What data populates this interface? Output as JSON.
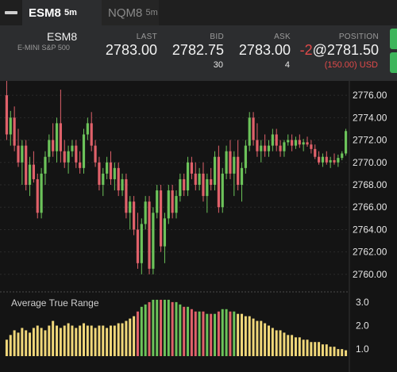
{
  "tabs": [
    {
      "symbol": "ESM8",
      "interval": "5m",
      "active": true
    },
    {
      "symbol": "NQM8",
      "interval": "5m",
      "active": false
    }
  ],
  "quote": {
    "symbol": "ESM8",
    "description": "E-MINI S&P 500",
    "last_label": "LAST",
    "last": "2783.00",
    "bid_label": "BID",
    "bid": "2782.75",
    "bid_size": "30",
    "ask_label": "ASK",
    "ask": "2783.00",
    "ask_size": "4",
    "position_label": "POSITION",
    "position_qty": "-2",
    "position_price": "@2781.50",
    "pnl": "(150.00) USD"
  },
  "colors": {
    "up": "#6cc35a",
    "down": "#e0616a",
    "atr": "#f0d77a",
    "accent_green": "#3eb55b",
    "negative": "#e04a4a"
  },
  "chart_data": [
    {
      "type": "candlestick",
      "ylim": [
        2759,
        2777
      ],
      "price_ticks": [
        "2776.00",
        "2774.00",
        "2772.00",
        "2770.00",
        "2768.00",
        "2766.00",
        "2764.00",
        "2762.00",
        "2760.00"
      ],
      "ohlc": [
        [
          2776,
          2778,
          2772,
          2772.5
        ],
        [
          2772.5,
          2774.6,
          2771.5,
          2774
        ],
        [
          2774,
          2775,
          2771,
          2771.5
        ],
        [
          2771.5,
          2773,
          2769.6,
          2770
        ],
        [
          2770,
          2772,
          2768,
          2771.5
        ],
        [
          2771.5,
          2772,
          2767.5,
          2768
        ],
        [
          2768,
          2770.5,
          2767,
          2769.8
        ],
        [
          2769.8,
          2771,
          2768.2,
          2768.5
        ],
        [
          2768.5,
          2769,
          2765,
          2765.5
        ],
        [
          2765.5,
          2769.5,
          2765,
          2769
        ],
        [
          2769,
          2771,
          2768,
          2770.5
        ],
        [
          2770.5,
          2772.5,
          2770,
          2772
        ],
        [
          2772,
          2773.5,
          2770.5,
          2771
        ],
        [
          2771,
          2774,
          2770,
          2773.5
        ],
        [
          2773.5,
          2776.5,
          2770,
          2771
        ],
        [
          2771,
          2772,
          2769.5,
          2770
        ],
        [
          2770,
          2771.5,
          2769,
          2771
        ],
        [
          2771,
          2772,
          2770.5,
          2771.5
        ],
        [
          2771.5,
          2772,
          2769.5,
          2770
        ],
        [
          2770,
          2771,
          2769,
          2769.5
        ],
        [
          2769.5,
          2773,
          2769,
          2772.5
        ],
        [
          2772.5,
          2774,
          2772,
          2773.5
        ],
        [
          2773.5,
          2774.5,
          2771,
          2771.5
        ],
        [
          2771.5,
          2772,
          2769.6,
          2770
        ],
        [
          2770,
          2770.5,
          2767.5,
          2768
        ],
        [
          2768,
          2769.5,
          2767,
          2769
        ],
        [
          2769,
          2770.5,
          2768.5,
          2770
        ],
        [
          2770,
          2771,
          2768,
          2768.5
        ],
        [
          2768.5,
          2770,
          2767.5,
          2769.5
        ],
        [
          2769.5,
          2770,
          2767,
          2767.5
        ],
        [
          2767.5,
          2769,
          2767,
          2768.5
        ],
        [
          2768.5,
          2769,
          2765,
          2765.5
        ],
        [
          2765.5,
          2767,
          2764,
          2766.5
        ],
        [
          2766.5,
          2767,
          2763.5,
          2764
        ],
        [
          2764,
          2765.5,
          2760.5,
          2761
        ],
        [
          2761,
          2765,
          2760,
          2764.5
        ],
        [
          2764.5,
          2767,
          2764,
          2766.5
        ],
        [
          2766.5,
          2767,
          2760,
          2760.5
        ],
        [
          2760.5,
          2766,
          2760,
          2765.5
        ],
        [
          2765.5,
          2768,
          2765,
          2767.5
        ],
        [
          2767.5,
          2768,
          2762,
          2762.5
        ],
        [
          2762.5,
          2765.5,
          2761,
          2765
        ],
        [
          2765,
          2768,
          2764.5,
          2767.5
        ],
        [
          2767.5,
          2768,
          2765,
          2765.5
        ],
        [
          2765.5,
          2767.5,
          2765,
          2767
        ],
        [
          2767,
          2769,
          2766.5,
          2768.5
        ],
        [
          2768.5,
          2769,
          2767,
          2767.5
        ],
        [
          2767.5,
          2770.5,
          2767,
          2770
        ],
        [
          2770,
          2770.5,
          2768.5,
          2769
        ],
        [
          2769,
          2770,
          2767.5,
          2768
        ],
        [
          2768,
          2769.5,
          2767.5,
          2769
        ],
        [
          2769,
          2770,
          2766.5,
          2767
        ],
        [
          2767,
          2769,
          2765.5,
          2768.5
        ],
        [
          2768.5,
          2769.5,
          2767.5,
          2768
        ],
        [
          2768,
          2771,
          2767.5,
          2770.5
        ],
        [
          2770.5,
          2771.5,
          2765.5,
          2766
        ],
        [
          2766,
          2769.5,
          2765.5,
          2769
        ],
        [
          2769,
          2771.5,
          2768.5,
          2771
        ],
        [
          2771,
          2772,
          2768.5,
          2769
        ],
        [
          2769,
          2771,
          2767,
          2770.5
        ],
        [
          2770.5,
          2772,
          2767.5,
          2768
        ],
        [
          2768,
          2770,
          2766.5,
          2769.5
        ],
        [
          2769.5,
          2772,
          2769,
          2771.5
        ],
        [
          2771.5,
          2774.5,
          2771,
          2774
        ],
        [
          2774,
          2774.5,
          2771.5,
          2772
        ],
        [
          2772,
          2773.5,
          2770.5,
          2771
        ],
        [
          2771,
          2772,
          2770,
          2771.5
        ],
        [
          2771.5,
          2772.5,
          2770.5,
          2771
        ],
        [
          2771,
          2772,
          2770.5,
          2771.5
        ],
        [
          2771.5,
          2773,
          2771,
          2772.5
        ],
        [
          2772.5,
          2773,
          2771,
          2771.5
        ],
        [
          2771.5,
          2772,
          2770.5,
          2771
        ],
        [
          2771,
          2772,
          2770.5,
          2771.8
        ],
        [
          2771.8,
          2772.5,
          2771.5,
          2772
        ],
        [
          2772,
          2772.5,
          2771,
          2771.5
        ],
        [
          2771.5,
          2772.3,
          2771.2,
          2772
        ],
        [
          2772,
          2772.5,
          2771.3,
          2771.6
        ],
        [
          2771.6,
          2772.1,
          2771,
          2771.8
        ],
        [
          2771.8,
          2772.3,
          2771.4,
          2771.6
        ],
        [
          2771.6,
          2772,
          2770.8,
          2771.2
        ],
        [
          2771.2,
          2771.6,
          2770.3,
          2770.5
        ],
        [
          2770.5,
          2771,
          2769.8,
          2770
        ],
        [
          2770,
          2770.8,
          2769.6,
          2770.5
        ],
        [
          2770.5,
          2771,
          2769.8,
          2770
        ],
        [
          2770,
          2770.5,
          2769.5,
          2770.2
        ],
        [
          2770.2,
          2770.8,
          2769.8,
          2770
        ],
        [
          2770,
          2770.7,
          2769.6,
          2770.4
        ],
        [
          2770.4,
          2771,
          2770.2,
          2770.8
        ],
        [
          2770.8,
          2773,
          2770.6,
          2772.8
        ]
      ]
    },
    {
      "type": "bar",
      "title": "Average True Range",
      "ylim": [
        0.7,
        3.3
      ],
      "y_ticks": [
        "3.0",
        "2.0",
        "1.0"
      ],
      "values": [
        1.4,
        1.6,
        1.8,
        1.7,
        1.9,
        1.8,
        1.7,
        1.9,
        2.0,
        1.9,
        1.8,
        2.0,
        2.2,
        2.0,
        1.9,
        2.0,
        2.1,
        2.0,
        1.9,
        2.0,
        2.1,
        2.0,
        2.0,
        1.9,
        2.0,
        2.0,
        1.9,
        2.0,
        2.0,
        2.1,
        2.1,
        2.2,
        2.3,
        2.4,
        2.6,
        2.8,
        2.9,
        3.0,
        3.1,
        3.1,
        3.1,
        3.1,
        3.1,
        3.0,
        3.0,
        2.9,
        2.8,
        2.8,
        2.7,
        2.6,
        2.6,
        2.6,
        2.5,
        2.5,
        2.5,
        2.6,
        2.7,
        2.7,
        2.6,
        2.6,
        2.5,
        2.5,
        2.4,
        2.4,
        2.3,
        2.2,
        2.2,
        2.1,
        2.0,
        1.9,
        1.8,
        1.8,
        1.7,
        1.6,
        1.6,
        1.5,
        1.5,
        1.4,
        1.4,
        1.3,
        1.3,
        1.3,
        1.2,
        1.2,
        1.1,
        1.1,
        1.0,
        1.0,
        0.95
      ],
      "highlight": [
        34,
        35,
        36,
        37,
        38,
        39,
        40,
        41,
        42,
        43,
        44,
        45,
        46,
        47,
        48,
        49,
        50,
        51,
        52,
        53,
        54,
        55,
        56,
        57,
        58,
        59
      ]
    }
  ]
}
